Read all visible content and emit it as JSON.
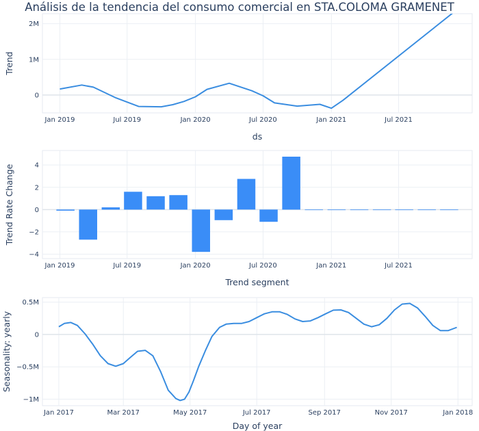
{
  "figure": {
    "title": "Análisis de la tendencia del consumo comercial en STA.COLOMA GRAMENET"
  },
  "chart_data": [
    {
      "type": "line",
      "xlabel": "ds",
      "ylabel": "Trend",
      "grid": true,
      "color": "#3a8de0",
      "xlim": [
        "2018-11-15",
        "2022-01-15"
      ],
      "ylim": [
        -500000,
        2280000
      ],
      "x_ticks": [
        {
          "value": "2019-01-01",
          "label": "Jan 2019"
        },
        {
          "value": "2019-07-01",
          "label": "Jul 2019"
        },
        {
          "value": "2020-01-01",
          "label": "Jan 2020"
        },
        {
          "value": "2020-07-01",
          "label": "Jul 2020"
        },
        {
          "value": "2021-01-01",
          "label": "Jan 2021"
        },
        {
          "value": "2021-07-01",
          "label": "Jul 2021"
        }
      ],
      "y_ticks": [
        {
          "value": 0,
          "label": "0"
        },
        {
          "value": 1000000,
          "label": "1M"
        },
        {
          "value": 2000000,
          "label": "2M"
        }
      ],
      "series": [
        {
          "x": [
            "2019-01-01",
            "2019-03-01",
            "2019-04-01",
            "2019-06-01",
            "2019-08-01",
            "2019-10-01",
            "2019-11-01",
            "2019-12-01",
            "2020-01-01",
            "2020-02-01",
            "2020-04-01",
            "2020-06-01",
            "2020-07-01",
            "2020-08-01",
            "2020-10-01",
            "2020-12-01",
            "2021-01-01",
            "2021-02-01",
            "2021-12-01"
          ],
          "y": [
            170000,
            280000,
            220000,
            -80000,
            -320000,
            -330000,
            -270000,
            -180000,
            -50000,
            160000,
            330000,
            120000,
            -20000,
            -220000,
            -310000,
            -260000,
            -370000,
            -150000,
            2360000
          ]
        }
      ]
    },
    {
      "type": "bar",
      "xlabel": "Trend segment",
      "ylabel": "Trend Rate Change",
      "grid": true,
      "color": "#3a8df7",
      "xlim": [
        "2018-11-15",
        "2022-01-15"
      ],
      "ylim": [
        -4.4,
        5.3
      ],
      "x_ticks": [
        {
          "value": "2019-01-01",
          "label": "Jan 2019"
        },
        {
          "value": "2019-07-01",
          "label": "Jul 2019"
        },
        {
          "value": "2020-01-01",
          "label": "Jan 2020"
        },
        {
          "value": "2020-07-01",
          "label": "Jul 2020"
        },
        {
          "value": "2021-01-01",
          "label": "Jan 2021"
        },
        {
          "value": "2021-07-01",
          "label": "Jul 2021"
        }
      ],
      "y_ticks": [
        {
          "value": -4,
          "label": "−4"
        },
        {
          "value": -2,
          "label": "−2"
        },
        {
          "value": 0,
          "label": "0"
        },
        {
          "value": 2,
          "label": "2"
        },
        {
          "value": 4,
          "label": "4"
        }
      ],
      "x": [
        "2019-01-16",
        "2019-03-18",
        "2019-05-18",
        "2019-07-17",
        "2019-09-16",
        "2019-11-16",
        "2020-01-16",
        "2020-03-17",
        "2020-05-17",
        "2020-07-16",
        "2020-09-15",
        "2020-11-15",
        "2021-01-15",
        "2021-03-17",
        "2021-05-17",
        "2021-07-16",
        "2021-09-15",
        "2021-11-14"
      ],
      "values": [
        -0.1,
        -2.7,
        0.2,
        1.6,
        1.2,
        1.3,
        -3.8,
        -0.95,
        2.75,
        -1.1,
        4.75,
        0,
        0,
        0,
        0,
        0,
        0,
        0
      ]
    },
    {
      "type": "line",
      "xlabel": "Day of year",
      "ylabel": "Seasonality: yearly",
      "grid": true,
      "color": "#3a8de0",
      "xlim": [
        "2016-12-17",
        "2018-01-14"
      ],
      "ylim": [
        -1100000,
        570000
      ],
      "x_ticks": [
        {
          "value": "2017-01-01",
          "label": "Jan 2017"
        },
        {
          "value": "2017-03-01",
          "label": "Mar 2017"
        },
        {
          "value": "2017-05-01",
          "label": "May 2017"
        },
        {
          "value": "2017-07-01",
          "label": "Jul 2017"
        },
        {
          "value": "2017-09-01",
          "label": "Sep 2017"
        },
        {
          "value": "2017-11-01",
          "label": "Nov 2017"
        },
        {
          "value": "2018-01-01",
          "label": "Jan 2018"
        }
      ],
      "y_ticks": [
        {
          "value": -1000000,
          "label": "−1M"
        },
        {
          "value": -500000,
          "label": "−0.5M"
        },
        {
          "value": 0,
          "label": "0"
        },
        {
          "value": 500000,
          "label": "0.5M"
        }
      ],
      "series": [
        {
          "x": [
            "2017-01-01",
            "2017-01-06",
            "2017-01-12",
            "2017-01-18",
            "2017-01-25",
            "2017-02-01",
            "2017-02-08",
            "2017-02-15",
            "2017-02-22",
            "2017-03-01",
            "2017-03-07",
            "2017-03-14",
            "2017-03-21",
            "2017-03-28",
            "2017-04-04",
            "2017-04-11",
            "2017-04-18",
            "2017-04-22",
            "2017-04-26",
            "2017-04-30",
            "2017-05-04",
            "2017-05-09",
            "2017-05-15",
            "2017-05-21",
            "2017-05-28",
            "2017-06-03",
            "2017-06-10",
            "2017-06-17",
            "2017-06-24",
            "2017-07-01",
            "2017-07-08",
            "2017-07-15",
            "2017-07-22",
            "2017-07-29",
            "2017-08-05",
            "2017-08-12",
            "2017-08-19",
            "2017-08-26",
            "2017-09-02",
            "2017-09-09",
            "2017-09-16",
            "2017-09-23",
            "2017-09-30",
            "2017-10-07",
            "2017-10-14",
            "2017-10-21",
            "2017-10-28",
            "2017-11-04",
            "2017-11-11",
            "2017-11-18",
            "2017-11-25",
            "2017-12-02",
            "2017-12-09",
            "2017-12-16",
            "2017-12-23",
            "2017-12-31"
          ],
          "y": [
            120000,
            170000,
            185000,
            140000,
            10000,
            -150000,
            -330000,
            -450000,
            -490000,
            -450000,
            -360000,
            -260000,
            -245000,
            -330000,
            -570000,
            -860000,
            -990000,
            -1020000,
            -1000000,
            -890000,
            -720000,
            -490000,
            -250000,
            -30000,
            110000,
            160000,
            170000,
            170000,
            200000,
            260000,
            320000,
            350000,
            350000,
            310000,
            240000,
            200000,
            210000,
            260000,
            320000,
            375000,
            380000,
            340000,
            250000,
            160000,
            120000,
            150000,
            250000,
            380000,
            470000,
            480000,
            410000,
            280000,
            140000,
            60000,
            60000,
            110000
          ]
        }
      ]
    }
  ]
}
